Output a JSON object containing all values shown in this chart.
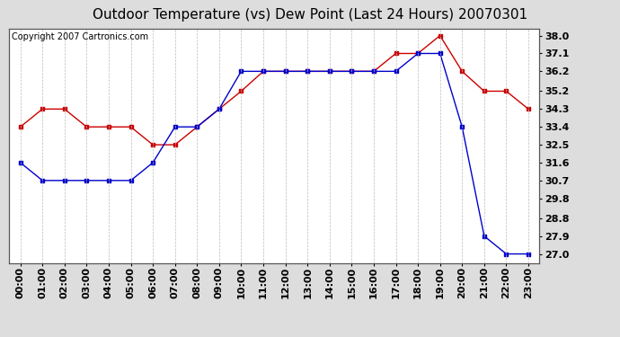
{
  "title": "Outdoor Temperature (vs) Dew Point (Last 24 Hours) 20070301",
  "copyright_text": "Copyright 2007 Cartronics.com",
  "hours": [
    "00:00",
    "01:00",
    "02:00",
    "03:00",
    "04:00",
    "05:00",
    "06:00",
    "07:00",
    "08:00",
    "09:00",
    "10:00",
    "11:00",
    "12:00",
    "13:00",
    "14:00",
    "15:00",
    "16:00",
    "17:00",
    "18:00",
    "19:00",
    "20:00",
    "21:00",
    "22:00",
    "23:00"
  ],
  "temp": [
    33.4,
    34.3,
    34.3,
    33.4,
    33.4,
    33.4,
    32.5,
    32.5,
    33.4,
    34.3,
    35.2,
    36.2,
    36.2,
    36.2,
    36.2,
    36.2,
    36.2,
    37.1,
    37.1,
    38.0,
    36.2,
    35.2,
    35.2,
    34.3
  ],
  "dew": [
    31.6,
    30.7,
    30.7,
    30.7,
    30.7,
    30.7,
    31.6,
    33.4,
    33.4,
    34.3,
    36.2,
    36.2,
    36.2,
    36.2,
    36.2,
    36.2,
    36.2,
    36.2,
    37.1,
    37.1,
    33.4,
    27.9,
    27.0,
    27.0
  ],
  "temp_color": "#cc0000",
  "dew_color": "#0000cc",
  "bg_color": "#dddddd",
  "plot_bg_color": "#ffffff",
  "grid_color": "#bbbbbb",
  "yticks_right": [
    38.0,
    37.1,
    36.2,
    35.2,
    34.3,
    33.4,
    32.5,
    31.6,
    30.7,
    29.8,
    28.8,
    27.9,
    27.0
  ],
  "ymin": 26.55,
  "ymax": 38.35,
  "title_fontsize": 11,
  "copyright_fontsize": 7,
  "tick_fontsize": 8
}
